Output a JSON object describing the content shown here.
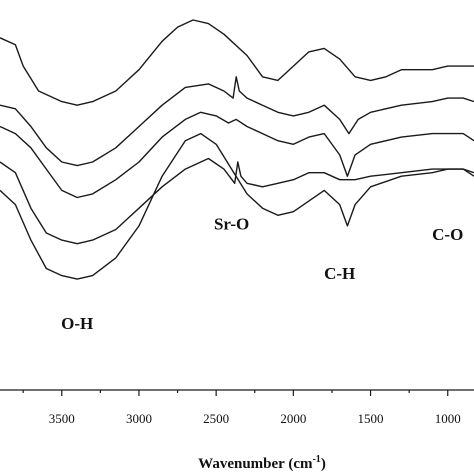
{
  "chart_data": {
    "type": "line",
    "title": "",
    "xlabel": "Wavenumber (cm",
    "xlabel_sup": "-1",
    "xlabel_close": ")",
    "ylabel": "",
    "x_reversed": true,
    "xlim": [
      3900,
      830
    ],
    "ylim": [
      0,
      100
    ],
    "x_ticks": [
      3500,
      3000,
      2500,
      2000,
      1500,
      1000
    ],
    "x_tick_labels": [
      "3500",
      "3000",
      "2500",
      "2000",
      "1500",
      "1000"
    ],
    "annotations": [
      {
        "text": "O-H",
        "x": 3400,
        "y": 13
      },
      {
        "text": "Sr-O",
        "x": 2400,
        "y": 41
      },
      {
        "text": "C-H",
        "x": 1700,
        "y": 27
      },
      {
        "text": "C-O",
        "x": 1000,
        "y": 38
      }
    ],
    "series": [
      {
        "points": [
          [
            3900,
            95
          ],
          [
            3800,
            93
          ],
          [
            3750,
            87
          ],
          [
            3650,
            80
          ],
          [
            3500,
            77
          ],
          [
            3400,
            76
          ],
          [
            3300,
            77
          ],
          [
            3150,
            80
          ],
          [
            3000,
            86
          ],
          [
            2850,
            94
          ],
          [
            2750,
            98
          ],
          [
            2650,
            100
          ],
          [
            2550,
            99
          ],
          [
            2450,
            96
          ],
          [
            2300,
            90
          ],
          [
            2200,
            84
          ],
          [
            2100,
            83
          ],
          [
            2000,
            87
          ],
          [
            1900,
            91
          ],
          [
            1800,
            92
          ],
          [
            1700,
            89
          ],
          [
            1600,
            84
          ],
          [
            1500,
            83
          ],
          [
            1400,
            84
          ],
          [
            1300,
            86
          ],
          [
            1200,
            86
          ],
          [
            1100,
            86
          ],
          [
            1000,
            87
          ],
          [
            900,
            87
          ],
          [
            830,
            87
          ]
        ]
      },
      {
        "points": [
          [
            3900,
            76
          ],
          [
            3800,
            75
          ],
          [
            3700,
            70
          ],
          [
            3600,
            64
          ],
          [
            3500,
            60
          ],
          [
            3400,
            59
          ],
          [
            3300,
            60
          ],
          [
            3150,
            64
          ],
          [
            3000,
            70
          ],
          [
            2850,
            76
          ],
          [
            2700,
            81
          ],
          [
            2550,
            82
          ],
          [
            2450,
            80
          ],
          [
            2390,
            78
          ],
          [
            2370,
            84
          ],
          [
            2350,
            80
          ],
          [
            2300,
            78
          ],
          [
            2200,
            76
          ],
          [
            2100,
            74
          ],
          [
            2000,
            73
          ],
          [
            1900,
            74
          ],
          [
            1800,
            76
          ],
          [
            1700,
            72
          ],
          [
            1640,
            68
          ],
          [
            1580,
            72
          ],
          [
            1500,
            74
          ],
          [
            1300,
            76
          ],
          [
            1100,
            77
          ],
          [
            1000,
            78
          ],
          [
            900,
            78
          ],
          [
            830,
            77
          ]
        ]
      },
      {
        "points": [
          [
            3900,
            70
          ],
          [
            3800,
            68
          ],
          [
            3700,
            64
          ],
          [
            3600,
            58
          ],
          [
            3500,
            52
          ],
          [
            3400,
            50
          ],
          [
            3300,
            51
          ],
          [
            3150,
            55
          ],
          [
            3000,
            60
          ],
          [
            2850,
            67
          ],
          [
            2700,
            72
          ],
          [
            2600,
            74
          ],
          [
            2500,
            73
          ],
          [
            2420,
            71
          ],
          [
            2370,
            72
          ],
          [
            2300,
            70
          ],
          [
            2200,
            68
          ],
          [
            2100,
            66
          ],
          [
            2000,
            65
          ],
          [
            1900,
            67
          ],
          [
            1800,
            68
          ],
          [
            1700,
            62
          ],
          [
            1650,
            56
          ],
          [
            1600,
            62
          ],
          [
            1500,
            65
          ],
          [
            1300,
            67
          ],
          [
            1100,
            68
          ],
          [
            1000,
            68
          ],
          [
            900,
            68
          ],
          [
            830,
            66
          ]
        ]
      },
      {
        "points": [
          [
            3900,
            60
          ],
          [
            3800,
            57
          ],
          [
            3700,
            47
          ],
          [
            3600,
            40
          ],
          [
            3500,
            38
          ],
          [
            3400,
            37
          ],
          [
            3300,
            38
          ],
          [
            3150,
            41
          ],
          [
            3000,
            47
          ],
          [
            2850,
            53
          ],
          [
            2700,
            58
          ],
          [
            2550,
            61
          ],
          [
            2450,
            58
          ],
          [
            2380,
            54
          ],
          [
            2360,
            60
          ],
          [
            2340,
            56
          ],
          [
            2300,
            54
          ],
          [
            2200,
            53
          ],
          [
            2100,
            54
          ],
          [
            2000,
            55
          ],
          [
            1900,
            57
          ],
          [
            1800,
            57
          ],
          [
            1700,
            55
          ],
          [
            1600,
            55
          ],
          [
            1500,
            56
          ],
          [
            1300,
            57
          ],
          [
            1100,
            58
          ],
          [
            1000,
            58
          ],
          [
            900,
            58
          ],
          [
            830,
            56
          ]
        ]
      },
      {
        "points": [
          [
            3900,
            52
          ],
          [
            3800,
            48
          ],
          [
            3700,
            38
          ],
          [
            3600,
            30
          ],
          [
            3500,
            28
          ],
          [
            3400,
            27
          ],
          [
            3300,
            28
          ],
          [
            3150,
            33
          ],
          [
            3000,
            42
          ],
          [
            2850,
            56
          ],
          [
            2700,
            66
          ],
          [
            2600,
            68
          ],
          [
            2500,
            65
          ],
          [
            2400,
            58
          ],
          [
            2300,
            51
          ],
          [
            2200,
            47
          ],
          [
            2100,
            45
          ],
          [
            2000,
            46
          ],
          [
            1900,
            49
          ],
          [
            1800,
            52
          ],
          [
            1700,
            48
          ],
          [
            1650,
            42
          ],
          [
            1600,
            48
          ],
          [
            1500,
            53
          ],
          [
            1300,
            56
          ],
          [
            1100,
            57
          ],
          [
            1000,
            58
          ],
          [
            900,
            58
          ],
          [
            830,
            57
          ]
        ]
      }
    ]
  }
}
